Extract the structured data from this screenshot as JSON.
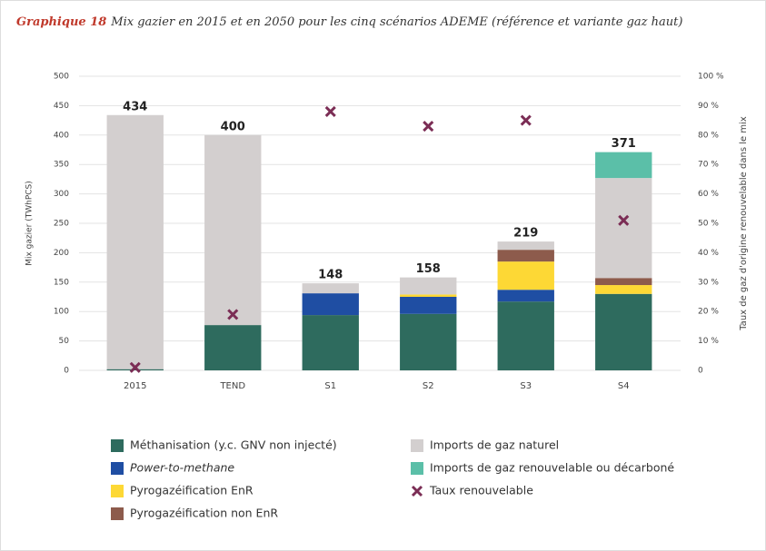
{
  "chart_data": {
    "type": "bar",
    "title_prefix": "Graphique 18",
    "title": "Mix gazier en 2015 et en 2050 pour les cinq scénarios ADEME (référence et variante gaz haut)",
    "y_label": "Mix gazier (TWhPCS)",
    "y2_label": "Taux de gaz d'origine renouvelable dans le mix",
    "categories": [
      "2015",
      "TEND",
      "S1",
      "S2",
      "S3",
      "S4"
    ],
    "series": [
      {
        "name": "Méthanisation (y.c. GNV non injecté)",
        "color": "#2e6b5e",
        "values": [
          2,
          77,
          94,
          96,
          117,
          130
        ]
      },
      {
        "name": "Power-to-methane",
        "color": "#1f4ea3",
        "values": [
          0,
          0,
          37,
          29,
          20,
          0
        ]
      },
      {
        "name": "Pyrogazéification EnR",
        "color": "#fdd835",
        "values": [
          0,
          0,
          0,
          4,
          48,
          15
        ]
      },
      {
        "name": "Pyrogazéification non EnR",
        "color": "#8d5b4c",
        "values": [
          0,
          0,
          0,
          0,
          20,
          12
        ]
      },
      {
        "name": "Imports de gaz naturel",
        "color": "#d3cfcf",
        "values": [
          432,
          323,
          17,
          29,
          14,
          170
        ]
      },
      {
        "name": "Imports de gaz renouvelable ou décarboné",
        "color": "#5bbfa8",
        "values": [
          0,
          0,
          0,
          0,
          0,
          44
        ]
      },
      {
        "name": "Taux renouvelable",
        "color": "#7b2d55",
        "axis": "y2",
        "values": [
          1,
          19,
          88,
          83,
          85,
          51
        ]
      }
    ],
    "totals": [
      434,
      400,
      148,
      158,
      219,
      371
    ],
    "ylim": [
      0,
      500
    ],
    "yticks": [
      0,
      50,
      100,
      150,
      200,
      250,
      300,
      350,
      400,
      450,
      500
    ],
    "y2lim": [
      0,
      100
    ],
    "y2ticks": [
      {
        "value": 0,
        "label": "0"
      },
      {
        "value": 10,
        "label": "10 %"
      },
      {
        "value": 20,
        "label": "20 %"
      },
      {
        "value": 30,
        "label": "30 %"
      },
      {
        "value": 40,
        "label": "40 %"
      },
      {
        "value": 50,
        "label": "50 %"
      },
      {
        "value": 60,
        "label": "60 %"
      },
      {
        "value": 70,
        "label": "70 %"
      },
      {
        "value": 80,
        "label": "80 %"
      },
      {
        "value": 90,
        "label": "90 %"
      },
      {
        "value": 100,
        "label": "100 %"
      }
    ],
    "grid": true
  }
}
